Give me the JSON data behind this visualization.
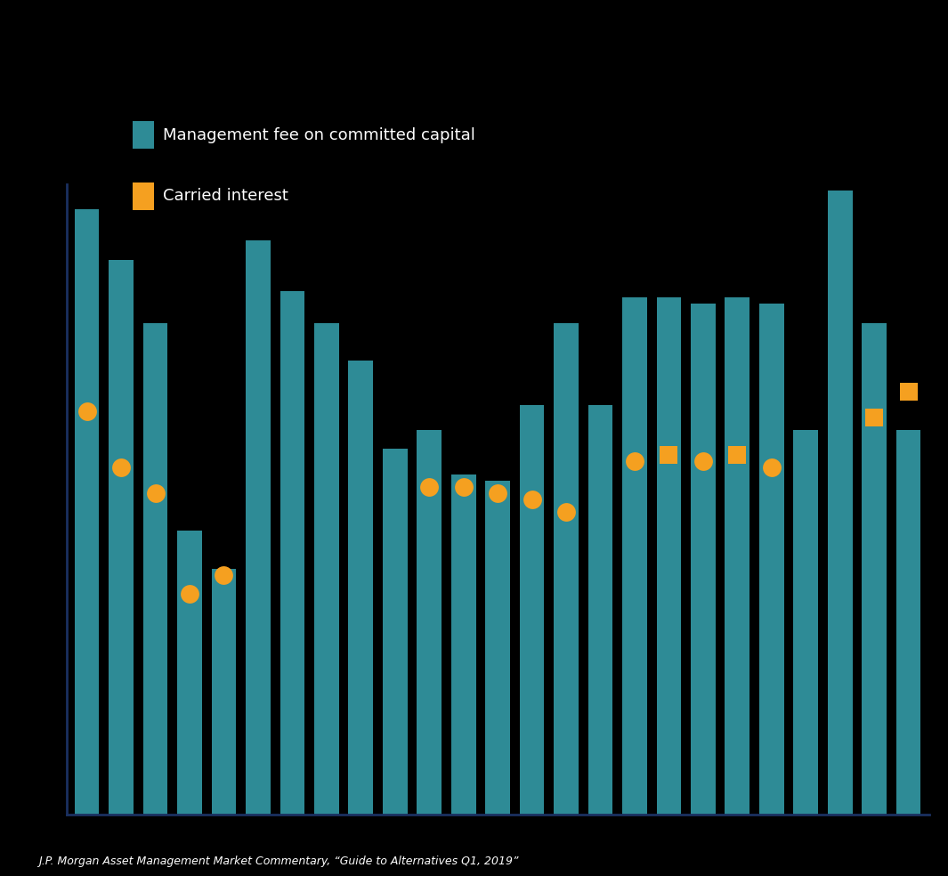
{
  "background_color": "#000000",
  "bar_color": "#2e8b96",
  "dot_color": "#f5a020",
  "legend_bar_label": "Management fee on committed capital",
  "legend_dot_label": "Carried interest",
  "source_text": "J.P. Morgan Asset Management Market Commentary, “Guide to Alternatives Q1, 2019”",
  "bar_values": [
    9.6,
    8.8,
    7.8,
    4.5,
    3.9,
    9.1,
    8.3,
    7.8,
    7.2,
    5.8,
    6.1,
    5.4,
    5.3,
    6.5,
    7.8,
    6.5,
    8.2,
    8.2,
    8.1,
    8.2,
    8.1,
    6.1,
    9.9,
    7.8,
    6.1
  ],
  "dot_values": [
    6.4,
    5.5,
    5.1,
    3.5,
    3.8,
    null,
    null,
    null,
    null,
    null,
    5.2,
    5.2,
    5.1,
    5.0,
    4.8,
    null,
    5.6,
    5.7,
    5.6,
    5.7,
    5.5,
    null,
    null,
    6.3,
    6.7
  ],
  "dot_is_square": [
    false,
    false,
    false,
    false,
    false,
    false,
    false,
    false,
    false,
    false,
    false,
    false,
    false,
    false,
    false,
    false,
    false,
    true,
    false,
    true,
    false,
    false,
    false,
    true,
    true
  ],
  "ylim": [
    0,
    10
  ],
  "figsize": [
    10.65,
    9.84
  ],
  "dpi": 100,
  "left_spine_color": "#1a3060",
  "source_fontsize": 9,
  "legend_fontsize": 13
}
